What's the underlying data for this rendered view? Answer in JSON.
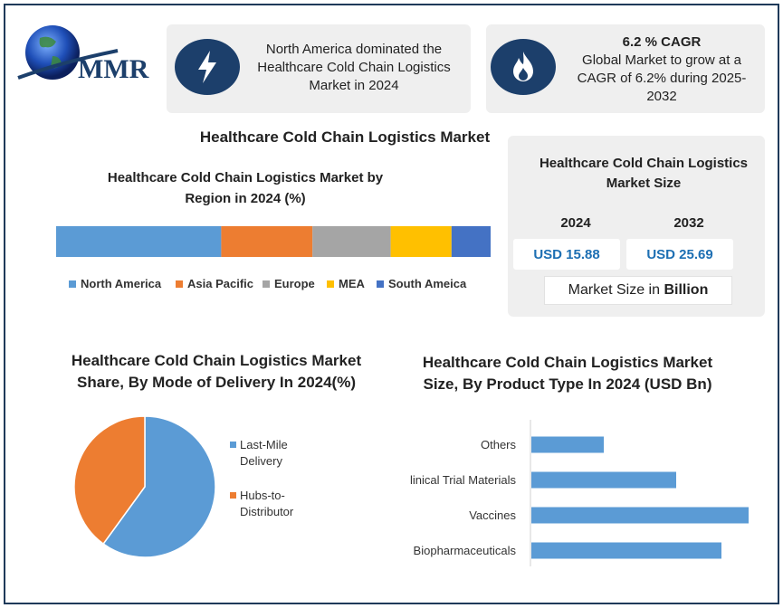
{
  "logo": {
    "text": "MMR"
  },
  "info_cards": [
    {
      "icon": "lightning-icon",
      "text": "North America dominated the Healthcare Cold Chain Logistics Market in 2024"
    },
    {
      "icon": "flame-icon",
      "title": "6.2 % CAGR",
      "text": "Global Market to grow at a CAGR of 6.2% during 2025-2032"
    }
  ],
  "main_title": "Healthcare Cold Chain Logistics Market",
  "market_size": {
    "title": "Healthcare Cold Chain Logistics Market Size",
    "years": [
      "2024",
      "2032"
    ],
    "values": [
      "USD 15.88",
      "USD 25.69"
    ],
    "unit_prefix": "Market Size in",
    "unit_bold": "Billion"
  },
  "colors": {
    "icon_bg": "#1c3f6b",
    "card_bg": "#efefef",
    "value_text": "#1d6fb3",
    "bar_blue": "#5b9bd5"
  },
  "chart_data": [
    {
      "type": "bar",
      "orientation": "stacked-horizontal",
      "title": "Healthcare Cold Chain Logistics Market by Region in 2024 (%)",
      "series": [
        {
          "name": "North America",
          "value": 38,
          "color": "#5b9bd5"
        },
        {
          "name": "Asia Pacific",
          "value": 21,
          "color": "#ed7d31"
        },
        {
          "name": "Europe",
          "value": 18,
          "color": "#a5a5a5"
        },
        {
          "name": "MEA",
          "value": 14,
          "color": "#ffc000"
        },
        {
          "name": "South Ameica",
          "value": 9,
          "color": "#4472c4"
        }
      ],
      "legend": "bottom"
    },
    {
      "type": "pie",
      "title": "Healthcare Cold Chain Logistics Market Share, By Mode of Delivery In 2024(%)",
      "slices": [
        {
          "name": "Last-Mile Delivery",
          "value": 60,
          "color": "#5b9bd5"
        },
        {
          "name": "Hubs-to-Distributor",
          "value": 40,
          "color": "#ed7d31"
        }
      ],
      "legend": "right"
    },
    {
      "type": "bar",
      "orientation": "horizontal",
      "title": "Healthcare Cold Chain Logistics Market Size, By Product Type In 2024 (USD Bn)",
      "categories": [
        "Others",
        "linical Trial Materials",
        "Vaccines",
        "Biopharmaceuticals"
      ],
      "values": [
        1.6,
        3.2,
        4.8,
        4.2
      ],
      "xlim": [
        0,
        5
      ],
      "grid": false
    }
  ]
}
